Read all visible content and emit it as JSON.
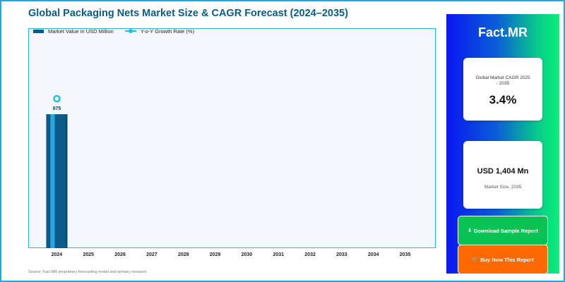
{
  "title": "Global Packaging Nets Market Size & CAGR Forecast (2024–2035)",
  "source": "Source: Fact.MR proprietary forecasting model and primary research",
  "colors": {
    "bar": "#0a5a8a",
    "bar_highlight": "#2fb6ee",
    "growth_line": "#19c3e6",
    "frame": "#1aa9e0",
    "title": "#0c5b84"
  },
  "legend": {
    "market_value": "Market Value in USD Million",
    "growth_rate": "Y-o-Y Growth Rate (%)"
  },
  "chart_data": {
    "type": "bar",
    "title": "Global Packaging Nets Market Size & CAGR Forecast (2024–2035)",
    "categories": [
      "2024",
      "2025",
      "2026",
      "2027",
      "2028",
      "2029",
      "2030",
      "2031",
      "2032",
      "2033",
      "2034",
      "2035"
    ],
    "series": [
      {
        "name": "Market Value in USD Million",
        "type": "bar",
        "values": [
          975,
          null,
          null,
          null,
          null,
          null,
          null,
          null,
          null,
          null,
          null,
          null
        ],
        "data_labels": [
          "975",
          "",
          "",
          "",
          "",
          "",
          "",
          "",
          "",
          "",
          "",
          ""
        ]
      },
      {
        "name": "Y-o-Y Growth Rate (%)",
        "type": "line",
        "values": [
          0,
          null,
          null,
          null,
          null,
          null,
          null,
          null,
          null,
          null,
          null,
          null
        ]
      }
    ],
    "ylim": [
      0,
      1400
    ],
    "grid": false,
    "legend_position": "top-left"
  },
  "panel": {
    "brand": "Fact.MR",
    "cagr_label": "Global Market CAGR 2025 - 2035",
    "cagr_value": "3.4%",
    "size_value": "USD 1,404 Mn",
    "size_label": "Market Size, 2035",
    "download_icon": "download-icon",
    "download_label": "Download Sample Report",
    "buy_icon": "cart-icon",
    "buy_label": "Buy Now This Report"
  }
}
